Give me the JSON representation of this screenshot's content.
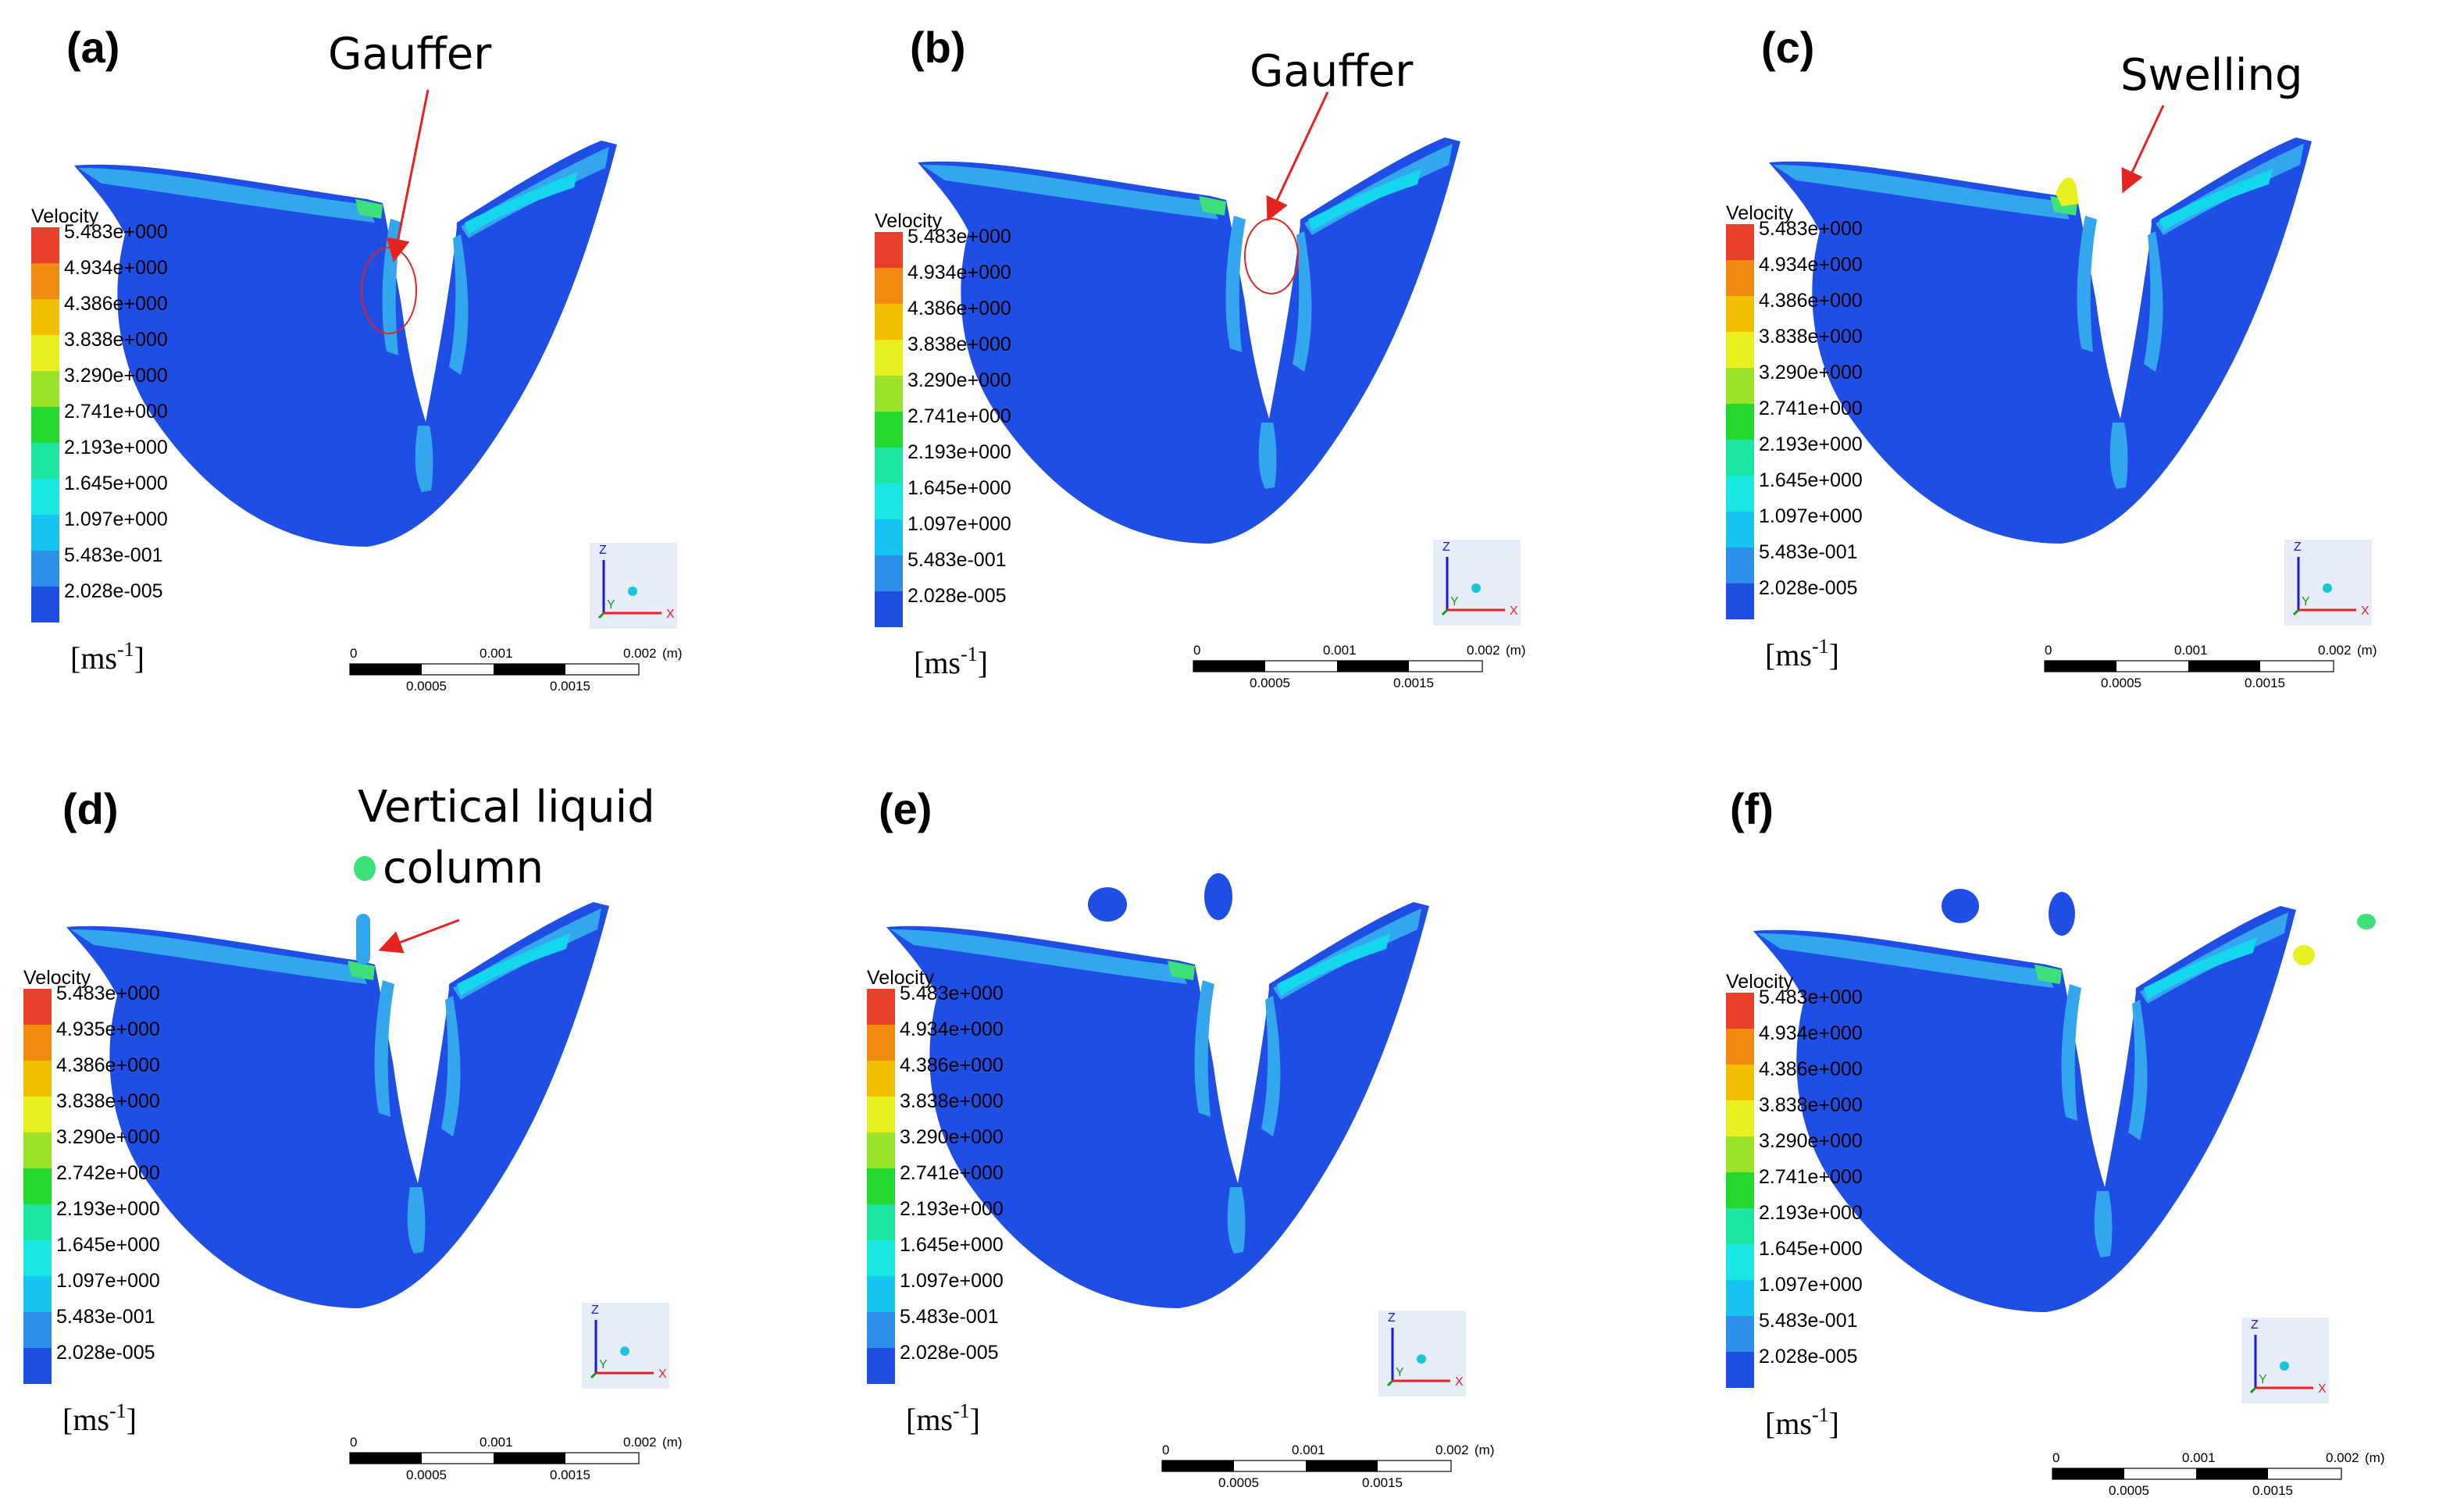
{
  "panels": [
    {
      "label": "(a)",
      "annotation": [
        "Gauffer"
      ],
      "legend_title": "Velocity",
      "legend_values": [
        "5.483e+000",
        "4.934e+000",
        "4.386e+000",
        "3.838e+000",
        "3.290e+000",
        "2.741e+000",
        "2.193e+000",
        "1.645e+000",
        "1.097e+000",
        "5.483e-001",
        "2.028e-005"
      ],
      "scale_top": [
        "0",
        "0.001",
        "0.002",
        "(m)"
      ],
      "scale_bottom": [
        "0.0005",
        "0.0015"
      ],
      "features": "gauffer-circle",
      "droplets": "none"
    },
    {
      "label": "(b)",
      "annotation": [
        "Gauffer"
      ],
      "legend_title": "Velocity",
      "legend_values": [
        "5.483e+000",
        "4.934e+000",
        "4.386e+000",
        "3.838e+000",
        "3.290e+000",
        "2.741e+000",
        "2.193e+000",
        "1.645e+000",
        "1.097e+000",
        "5.483e-001",
        "2.028e-005"
      ],
      "scale_top": [
        "0",
        "0.001",
        "0.002",
        "(m)"
      ],
      "scale_bottom": [
        "0.0005",
        "0.0015"
      ],
      "features": "gauffer-circle",
      "droplets": "none"
    },
    {
      "label": "(c)",
      "annotation": [
        "Swelling"
      ],
      "legend_title": "Velocity",
      "legend_values": [
        "5.483e+000",
        "4.934e+000",
        "4.386e+000",
        "3.838e+000",
        "3.290e+000",
        "2.741e+000",
        "2.193e+000",
        "1.645e+000",
        "1.097e+000",
        "5.483e-001",
        "2.028e-005"
      ],
      "scale_top": [
        "0",
        "0.001",
        "0.002",
        "(m)"
      ],
      "scale_bottom": [
        "0.0005",
        "0.0015"
      ],
      "features": "swelling",
      "droplets": "none"
    },
    {
      "label": "(d)",
      "annotation": [
        "Vertical liquid",
        "column"
      ],
      "legend_title": "Velocity",
      "legend_values": [
        "5.483e+000",
        "4.935e+000",
        "4.386e+000",
        "3.838e+000",
        "3.290e+000",
        "2.742e+000",
        "2.193e+000",
        "1.645e+000",
        "1.097e+000",
        "5.483e-001",
        "2.028e-005"
      ],
      "scale_top": [
        "0",
        "0.001",
        "0.002",
        "(m)"
      ],
      "scale_bottom": [
        "0.0005",
        "0.0015"
      ],
      "features": "column",
      "droplets": "column"
    },
    {
      "label": "(e)",
      "annotation": [],
      "legend_title": "Velocity",
      "legend_values": [
        "5.483e+000",
        "4.934e+000",
        "4.386e+000",
        "3.838e+000",
        "3.290e+000",
        "2.741e+000",
        "2.193e+000",
        "1.645e+000",
        "1.097e+000",
        "5.483e-001",
        "2.028e-005"
      ],
      "scale_top": [
        "0",
        "0.001",
        "0.002",
        "(m)"
      ],
      "scale_bottom": [
        "0.0005",
        "0.0015"
      ],
      "features": "none",
      "droplets": "two"
    },
    {
      "label": "(f)",
      "annotation": [],
      "legend_title": "Velocity",
      "legend_values": [
        "5.483e+000",
        "4.934e+000",
        "4.386e+000",
        "3.838e+000",
        "3.290e+000",
        "2.741e+000",
        "2.193e+000",
        "1.645e+000",
        "1.097e+000",
        "5.483e-001",
        "2.028e-005"
      ],
      "scale_top": [
        "0",
        "0.001",
        "0.002",
        "(m)"
      ],
      "scale_bottom": [
        "0.0005",
        "0.0015"
      ],
      "features": "spatter",
      "droplets": "many"
    }
  ],
  "unit_base": "[ms",
  "unit_exp": "-1",
  "unit_close": "]",
  "axis_labels": {
    "z": "Z",
    "x": "X",
    "y": "Y"
  },
  "legend_colors": [
    "#e8402a",
    "#f08a10",
    "#f3c000",
    "#e9f020",
    "#9be22a",
    "#24d830",
    "#1ee6a0",
    "#19e8e2",
    "#16c4f0",
    "#2e8fe8",
    "#1e4fe0"
  ],
  "colors": {
    "melt_base": "#1f4ee4",
    "arrow": "#e52421",
    "accent_cyan": "#14d6ec",
    "accent_green": "#3ee07a",
    "accent_light": "#34a6ee"
  }
}
